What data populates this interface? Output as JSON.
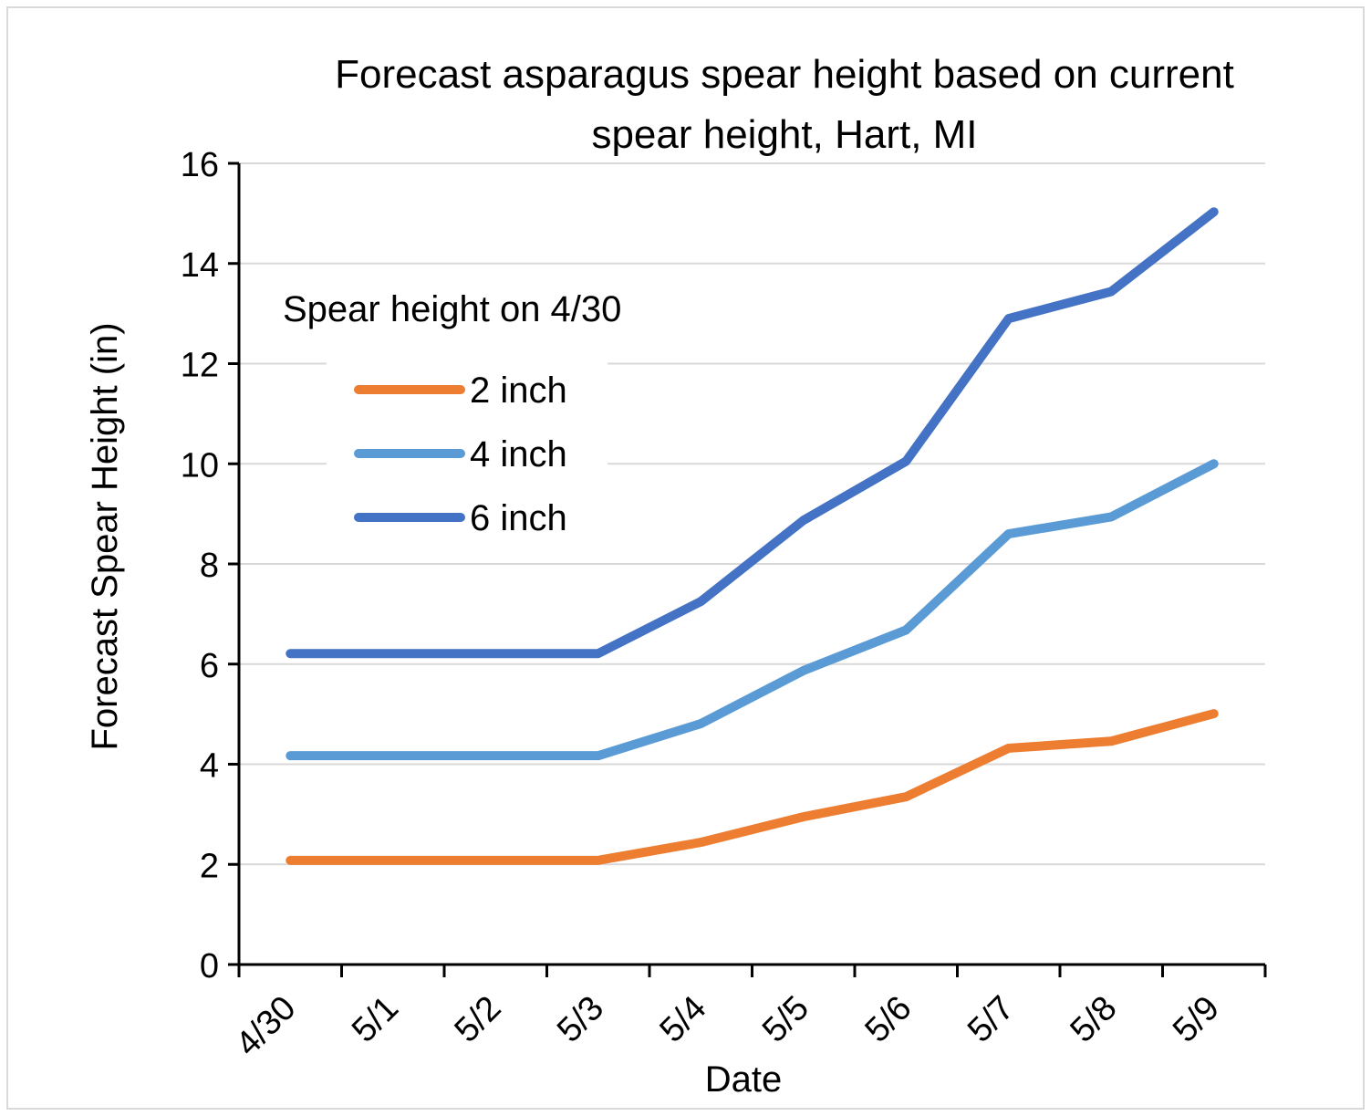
{
  "chart_data": {
    "type": "line",
    "title": [
      "Forecast asparagus spear height based on current",
      "spear height, Hart, MI"
    ],
    "xlabel": "Date",
    "ylabel": "Forecast Spear Height (in)",
    "categories": [
      "4/30",
      "5/1",
      "5/2",
      "5/3",
      "5/4",
      "5/5",
      "5/6",
      "5/7",
      "5/8",
      "5/9"
    ],
    "ylim": [
      0,
      16
    ],
    "yticks": [
      0,
      2,
      4,
      6,
      8,
      10,
      12,
      14,
      16
    ],
    "grid": "horizontal",
    "legend": {
      "title": "Spear height on 4/30",
      "placement": "top-left"
    },
    "series": [
      {
        "name": "2 inch",
        "color": "#ED7D31",
        "values": [
          2.08,
          2.08,
          2.08,
          2.08,
          2.44,
          2.95,
          3.35,
          4.32,
          4.46,
          5.01
        ]
      },
      {
        "name": "4 inch",
        "color": "#5B9BD5",
        "values": [
          4.17,
          4.17,
          4.17,
          4.17,
          4.81,
          5.87,
          6.68,
          8.6,
          8.94,
          10.0
        ]
      },
      {
        "name": "6 inch",
        "color": "#4472C4",
        "values": [
          6.21,
          6.21,
          6.21,
          6.21,
          7.25,
          8.87,
          10.05,
          12.9,
          13.44,
          15.03
        ]
      }
    ]
  }
}
